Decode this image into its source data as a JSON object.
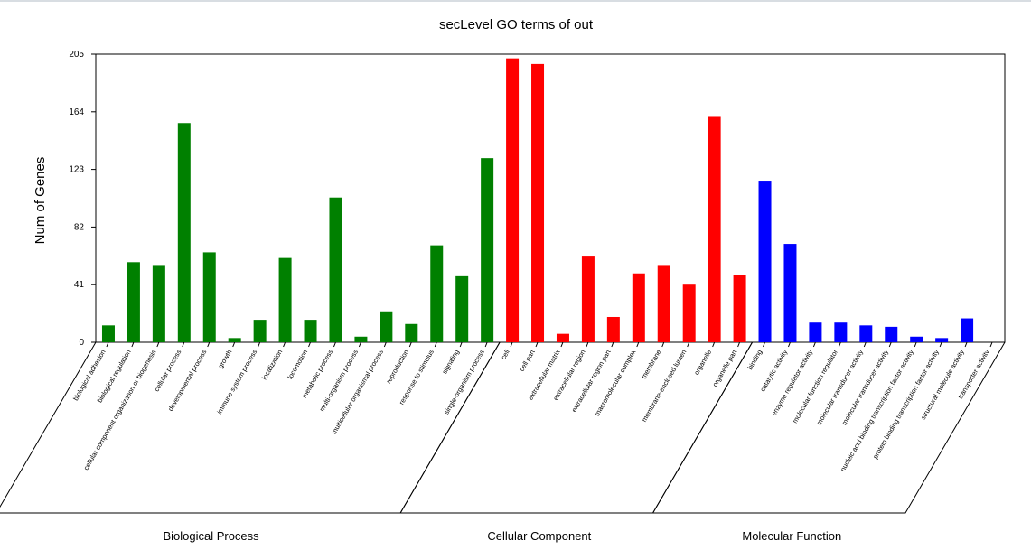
{
  "chart_data": {
    "type": "bar",
    "title": "secLevel GO terms of out",
    "ylabel": "Num of Genes",
    "ylim": [
      0,
      205
    ],
    "yticks": [
      0,
      41,
      82,
      123,
      164,
      205
    ],
    "grid": false,
    "groups": [
      {
        "name": "Biological Process",
        "color": "#008000",
        "categories": [
          "biological adhesion",
          "biological regulation",
          "cellular component organization or biogenesis",
          "cellular process",
          "developmental process",
          "growth",
          "immune system process",
          "localization",
          "locomotion",
          "metabolic process",
          "multi-organism process",
          "multicellular organismal process",
          "reproduction",
          "response to stimulus",
          "signaling",
          "single-organism process"
        ],
        "values": [
          12,
          57,
          55,
          156,
          64,
          3,
          16,
          60,
          16,
          103,
          4,
          22,
          13,
          69,
          47,
          131
        ]
      },
      {
        "name": "Cellular Component",
        "color": "#ff0000",
        "categories": [
          "cell",
          "cell part",
          "extracellular matrix",
          "extracellular region",
          "extracellular region part",
          "macromolecular complex",
          "membrane",
          "membrane-enclosed lumen",
          "organelle",
          "organelle part"
        ],
        "values": [
          202,
          198,
          6,
          61,
          18,
          49,
          55,
          41,
          161,
          48
        ]
      },
      {
        "name": "Molecular Function",
        "color": "#0000ff",
        "categories": [
          "binding",
          "catalytic activity",
          "enzyme regulator activity",
          "molecular function regulator",
          "molecular transducer activity",
          "molecular transducer activity",
          "nucleic acid binding transcription factor activity",
          "protein binding transcription factor activity",
          "structural molecule activity",
          "transporter activity"
        ],
        "values": [
          115,
          70,
          14,
          14,
          12,
          11,
          4,
          3,
          17,
          0
        ]
      }
    ]
  }
}
